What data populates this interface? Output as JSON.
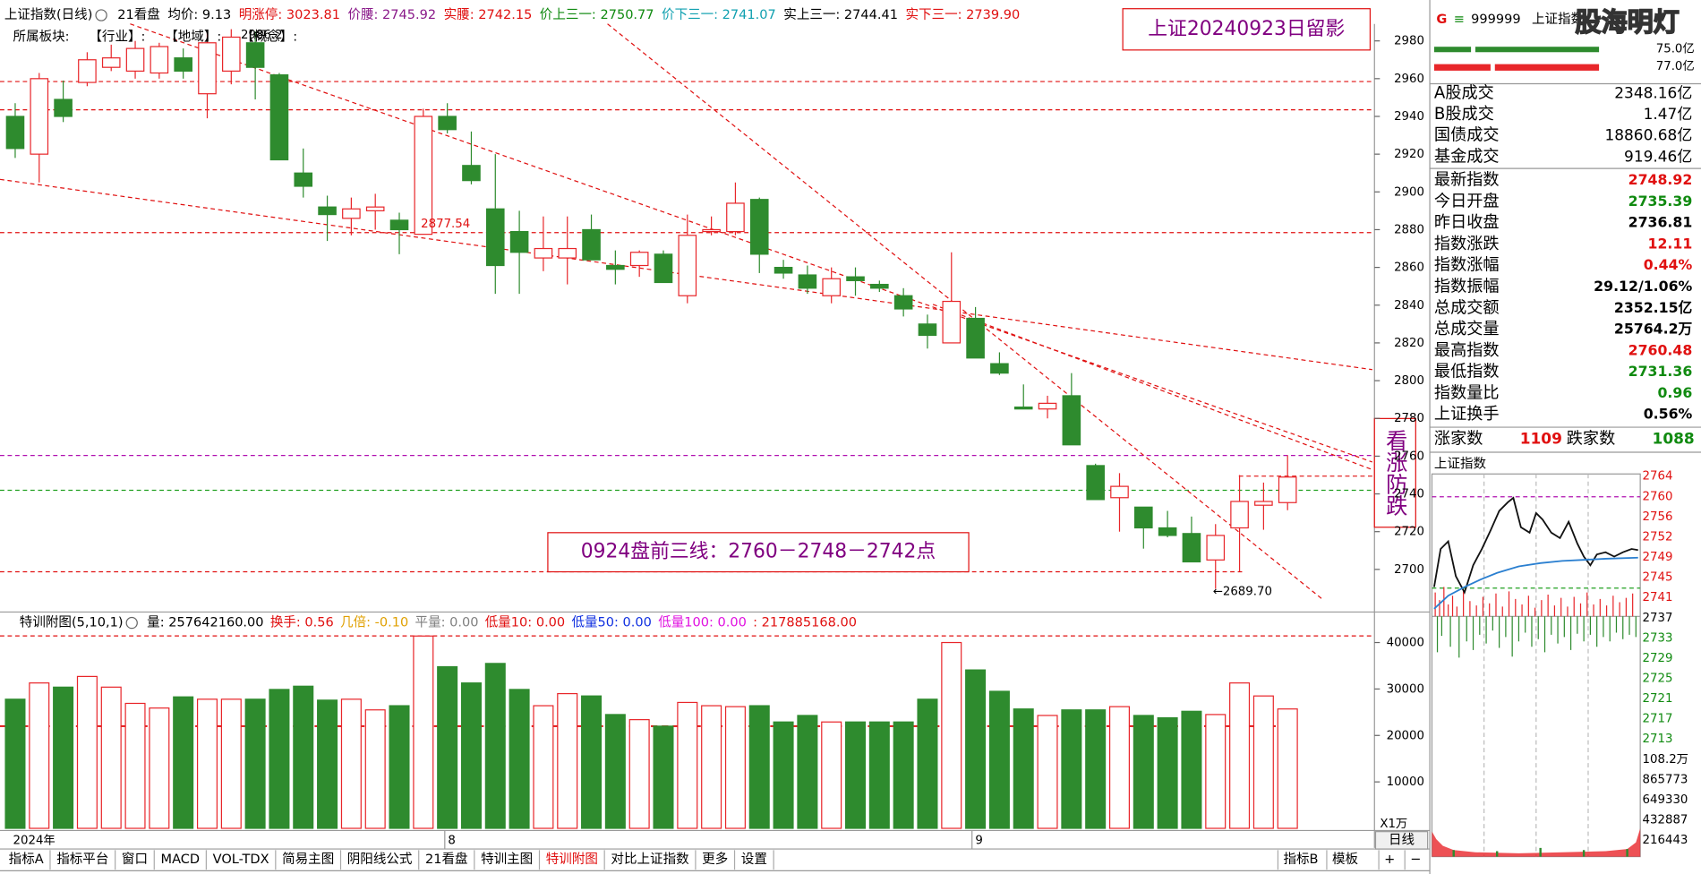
{
  "header": {
    "items": [
      {
        "text": "上证指数(日线)",
        "color": "#000000"
      },
      {
        "text": "21看盘",
        "color": "#000000"
      },
      {
        "text": "均价: 9.13",
        "color": "#000000"
      },
      {
        "text": "明涨停: 3023.81",
        "color": "#e01010"
      },
      {
        "text": "价腰: 2745.92",
        "color": "#8a1a8a"
      },
      {
        "text": "实腰: 2742.15",
        "color": "#e01010"
      },
      {
        "text": "价上三一: 2750.77",
        "color": "#108a10"
      },
      {
        "text": "价下三一: 2741.07",
        "color": "#10a0b0"
      },
      {
        "text": "实上三一: 2744.41",
        "color": "#000000"
      },
      {
        "text": "实下三一: 2739.90",
        "color": "#e01010"
      }
    ],
    "sectors": [
      "所属板块:",
      "【行业】:",
      "【地域】:",
      "【概念】:"
    ]
  },
  "annotations": {
    "snapshot": "上证20240923日留影",
    "lines": "0924盘前三线：2760－2748－2742点",
    "outlook": "看涨防跌",
    "high_label": "2986.2",
    "mid_label": "2877.54",
    "low_label": "←2689.70"
  },
  "chart": {
    "type": "candlestick",
    "up_color": "#e8262a",
    "down_color": "#2e8b2e",
    "ylim": [
      2678,
      2989
    ],
    "yticks": [
      2700,
      2720,
      2740,
      2760,
      2780,
      2800,
      2820,
      2840,
      2860,
      2880,
      2900,
      2920,
      2940,
      2960,
      2980
    ],
    "open": [
      2940,
      2920,
      2949,
      2958,
      2966,
      2964,
      2963,
      2971,
      2952,
      2964,
      2979,
      2962,
      2910,
      2892,
      2886,
      2890,
      2885,
      2877.54,
      2940,
      2914,
      2891,
      2879,
      2865,
      2865,
      2880,
      2861,
      2861,
      2867,
      2845,
      2879,
      2879,
      2896,
      2860,
      2856,
      2845,
      2855,
      2851,
      2845,
      2830,
      2820,
      2833,
      2809,
      2786,
      2785,
      2792,
      2755,
      2738,
      2733,
      2722,
      2719,
      2705,
      2722,
      2734,
      2735.39
    ],
    "high": [
      2947,
      2963,
      2959,
      2974,
      2978,
      2980,
      2979,
      2976,
      2985,
      2986.2,
      2985,
      2963,
      2923,
      2898,
      2897,
      2899,
      2889,
      2944,
      2947,
      2932,
      2920,
      2890,
      2887,
      2887,
      2888,
      2869,
      2869,
      2869,
      2888,
      2887,
      2905,
      2897,
      2864,
      2861,
      2860,
      2860,
      2853,
      2849,
      2835,
      2868,
      2839,
      2815,
      2798,
      2792,
      2804,
      2756,
      2751,
      2733,
      2731,
      2728,
      2724,
      2750,
      2746,
      2760.48
    ],
    "low": [
      2918,
      2905,
      2937,
      2956,
      2964,
      2960,
      2960,
      2960,
      2939,
      2957,
      2949,
      2917,
      2897,
      2874,
      2877,
      2880,
      2867,
      2877.54,
      2931,
      2904,
      2846,
      2846,
      2858,
      2851,
      2864,
      2851,
      2855,
      2852,
      2841,
      2877,
      2877,
      2857,
      2854,
      2846,
      2841,
      2845,
      2847,
      2834,
      2817,
      2820,
      2812,
      2803,
      2785,
      2780,
      2766,
      2737,
      2720,
      2711,
      2717,
      2704,
      2689.7,
      2699,
      2721,
      2731.36
    ],
    "close": [
      2923,
      2960,
      2940,
      2970,
      2971,
      2976,
      2977,
      2964,
      2979,
      2982,
      2966,
      2917,
      2903,
      2888,
      2891,
      2892,
      2880,
      2940,
      2933,
      2906,
      2861,
      2868,
      2870,
      2870,
      2864,
      2859,
      2868,
      2852,
      2877,
      2880,
      2894,
      2867,
      2857,
      2849,
      2854,
      2853,
      2849,
      2838,
      2824,
      2842,
      2812,
      2804,
      2785,
      2788,
      2766,
      2737,
      2744,
      2722,
      2718,
      2704,
      2718,
      2736,
      2736,
      2748.92
    ],
    "x_labels": [
      "2024年",
      "8",
      "9"
    ],
    "period": "日线"
  },
  "volume": {
    "items": [
      {
        "text": "特训附图(5,10,1)",
        "color": "#000000"
      },
      {
        "text": "量: 257642160.00",
        "color": "#000000"
      },
      {
        "text": "换手: 0.56",
        "color": "#e01010"
      },
      {
        "text": "几倍: -0.10",
        "color": "#e0a000"
      },
      {
        "text": "平量: 0.00",
        "color": "#808080"
      },
      {
        "text": "低量10: 0.00",
        "color": "#e01010"
      },
      {
        "text": "低量50: 0.00",
        "color": "#1030e0"
      },
      {
        "text": "低量100: 0.00",
        "color": "#e010e0"
      },
      {
        "text": ": 217885168.00",
        "color": "#e01010"
      }
    ],
    "ylim": [
      0,
      45400
    ],
    "yticks": [
      10000,
      20000,
      30000,
      40000
    ],
    "unit": "X1万",
    "values": [
      27800,
      31300,
      30400,
      32700,
      30400,
      26900,
      25900,
      28300,
      27800,
      27800,
      27800,
      29900,
      30600,
      27600,
      27800,
      25500,
      26400,
      41400,
      34800,
      31300,
      35500,
      29900,
      26400,
      29000,
      28500,
      24500,
      23400,
      22000,
      27100,
      26400,
      26200,
      26400,
      22900,
      24300,
      22900,
      22900,
      22900,
      22900,
      27800,
      40000,
      34100,
      29500,
      25700,
      24300,
      25500,
      25500,
      26200,
      24300,
      23800,
      25200,
      24500,
      31300,
      28500,
      25700
    ]
  },
  "tabs": {
    "left": [
      "指标A",
      "指标平台",
      "窗口",
      "MACD",
      "VOL-TDX",
      "简易主图",
      "阴阳线公式",
      "21看盘",
      "特训主图",
      "特训附图",
      "对比上证指数",
      "更多",
      "设置"
    ],
    "right": [
      "指标B",
      "模板",
      "+",
      "−"
    ]
  },
  "panel": {
    "flag": "G",
    "menu": "≡",
    "code": "999999",
    "name": "上证指数",
    "watermark": "股海明灯",
    "buy_label": "75.0亿",
    "sell_label": "77.0亿",
    "turnover": [
      {
        "label": "A股成交",
        "value": "2348.16亿",
        "color": "#000000"
      },
      {
        "label": "B股成交",
        "value": "1.47亿",
        "color": "#000000"
      },
      {
        "label": "国债成交",
        "value": "18860.68亿",
        "color": "#000000"
      },
      {
        "label": "基金成交",
        "value": "919.46亿",
        "color": "#000000"
      }
    ],
    "stats": [
      {
        "label": "最新指数",
        "value": "2748.92",
        "color": "#e01010"
      },
      {
        "label": "今日开盘",
        "value": "2735.39",
        "color": "#108a10"
      },
      {
        "label": "昨日收盘",
        "value": "2736.81",
        "color": "#000000"
      },
      {
        "label": "指数涨跌",
        "value": "12.11",
        "color": "#e01010"
      },
      {
        "label": "指数涨幅",
        "value": "0.44%",
        "color": "#e01010"
      },
      {
        "label": "指数振幅",
        "value": "29.12/1.06%",
        "color": "#000000"
      },
      {
        "label": "总成交额",
        "value": "2352.15亿",
        "color": "#000000"
      },
      {
        "label": "总成交量",
        "value": "25764.2万",
        "color": "#000000"
      },
      {
        "label": "最高指数",
        "value": "2760.48",
        "color": "#e01010"
      },
      {
        "label": "最低指数",
        "value": "2731.36",
        "color": "#108a10"
      },
      {
        "label": "指数量比",
        "value": "0.96",
        "color": "#108a10"
      },
      {
        "label": "上证换手",
        "value": "0.56%",
        "color": "#000000"
      }
    ],
    "breadth": {
      "up_label": "涨家数",
      "up": "1109",
      "down_label": "跌家数",
      "down": "1088"
    },
    "mini_title": "上证指数",
    "mini_axis": [
      "2764",
      "2760",
      "2756",
      "2752",
      "2749",
      "2745",
      "2741",
      "2737",
      "2733",
      "2729",
      "2725",
      "2721",
      "2717",
      "2713",
      "108.2万",
      "865773",
      "649330",
      "432887",
      "216443"
    ]
  }
}
